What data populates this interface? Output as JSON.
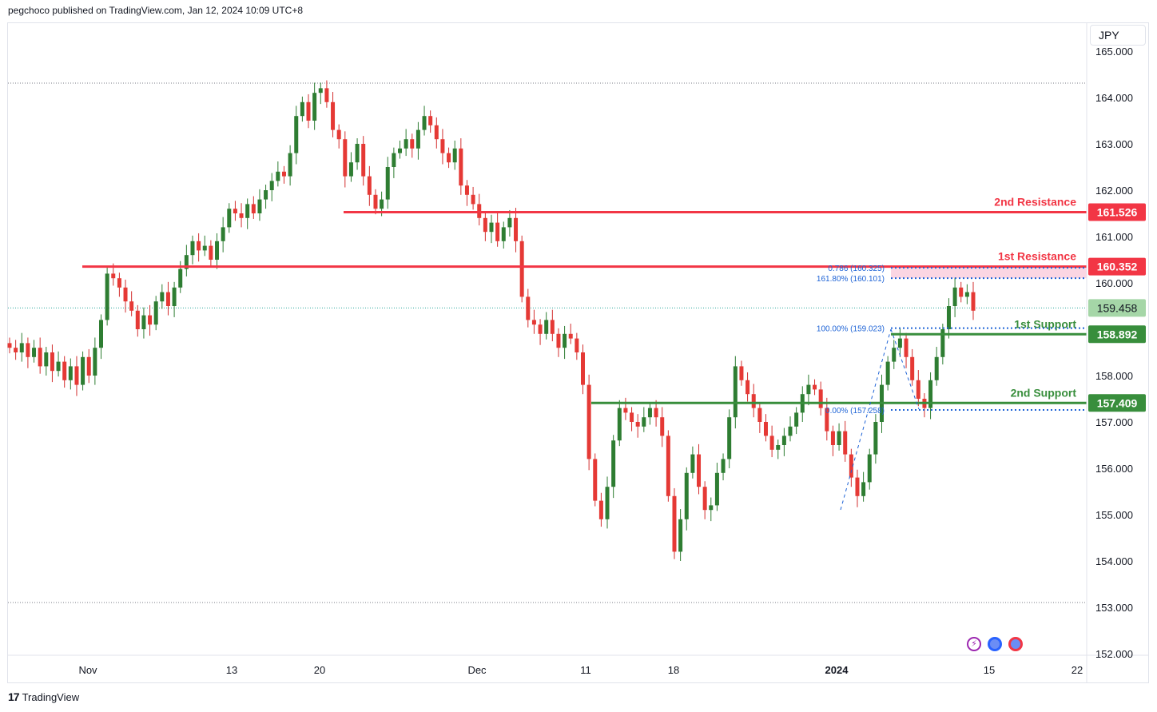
{
  "header": {
    "text": "pegchoco published on TradingView.com, Jan 12, 2024 10:09 UTC+8"
  },
  "footer": {
    "brand": "TradingView",
    "logo_mark": "17"
  },
  "currency": "JPY",
  "chart_data": {
    "type": "candlestick",
    "price_axis": {
      "ticks": [
        "165.000",
        "164.000",
        "163.000",
        "162.000",
        "161.000",
        "160.000",
        "158.000",
        "157.000",
        "156.000",
        "155.000",
        "154.000",
        "153.000",
        "152.000"
      ],
      "range": [
        152.0,
        165.0
      ]
    },
    "date_axis": {
      "labels": [
        "Nov",
        "13",
        "20",
        "Dec",
        "11",
        "18",
        "2024",
        "15",
        "22"
      ]
    },
    "levels": [
      {
        "name": "2nd Resistance",
        "value": 161.526,
        "label": "161.526",
        "color": "#f23645"
      },
      {
        "name": "1st Resistance",
        "value": 160.352,
        "label": "160.352",
        "color": "#f23645"
      },
      {
        "name": "1st Support",
        "value": 158.892,
        "label": "158.892",
        "color": "#388e3c"
      },
      {
        "name": "2nd Support",
        "value": 157.409,
        "label": "157.409",
        "color": "#388e3c"
      }
    ],
    "current_price": {
      "value": 159.458,
      "label": "159.458"
    },
    "fibonacci": [
      {
        "label": "0.786 (160.325)",
        "value": 160.325
      },
      {
        "label": "161.80% (160.101)",
        "value": 160.101
      },
      {
        "label": "100.00% (159.023)",
        "value": 159.023
      },
      {
        "label": "0.00% (157.258)",
        "value": 157.258
      }
    ],
    "high_line": 164.3,
    "low_line": 153.1,
    "ohlc_closes": [
      158.6,
      158.5,
      158.7,
      158.4,
      158.6,
      158.2,
      158.5,
      158.1,
      158.3,
      157.9,
      158.2,
      157.8,
      158.4,
      158.0,
      158.6,
      159.2,
      160.2,
      160.1,
      159.9,
      159.6,
      159.4,
      159.0,
      159.3,
      159.1,
      159.6,
      159.8,
      159.5,
      159.9,
      160.3,
      160.6,
      160.9,
      160.7,
      160.8,
      160.5,
      160.9,
      161.2,
      161.6,
      161.5,
      161.4,
      161.7,
      161.5,
      161.8,
      162.0,
      162.2,
      162.4,
      162.3,
      162.8,
      163.6,
      163.9,
      163.5,
      164.1,
      164.2,
      163.9,
      163.3,
      163.1,
      162.3,
      162.6,
      163.0,
      162.3,
      161.9,
      161.6,
      161.8,
      162.5,
      162.8,
      162.9,
      163.1,
      162.9,
      163.3,
      163.6,
      163.4,
      163.1,
      162.8,
      162.6,
      162.9,
      162.1,
      161.9,
      161.7,
      161.4,
      161.1,
      161.3,
      160.9,
      161.2,
      161.4,
      160.9,
      159.7,
      159.2,
      159.1,
      158.9,
      159.2,
      158.9,
      158.6,
      158.9,
      158.8,
      158.5,
      157.8,
      156.2,
      155.3,
      154.9,
      155.6,
      156.6,
      157.3,
      157.2,
      157.0,
      156.9,
      157.1,
      157.3,
      157.1,
      156.7,
      155.4,
      154.2,
      154.9,
      155.9,
      156.3,
      155.6,
      155.1,
      155.2,
      155.9,
      156.2,
      157.1,
      158.2,
      157.9,
      157.6,
      157.3,
      157.0,
      156.7,
      156.4,
      156.5,
      156.7,
      156.9,
      157.2,
      157.6,
      157.8,
      157.7,
      157.3,
      156.8,
      156.5,
      156.8,
      156.3,
      155.8,
      155.4,
      155.7,
      156.3,
      157.0,
      157.8,
      158.3,
      158.6,
      158.8,
      158.4,
      157.9,
      157.5,
      157.3,
      157.9,
      158.4,
      159.0,
      159.5,
      159.9,
      159.7,
      159.8,
      159.4
    ]
  },
  "icons": [
    {
      "name": "lightning-icon",
      "color": "#9c27b0"
    },
    {
      "name": "globe-icon",
      "color": "#2962ff"
    },
    {
      "name": "globe-icon-2",
      "color": "#f23645"
    }
  ]
}
